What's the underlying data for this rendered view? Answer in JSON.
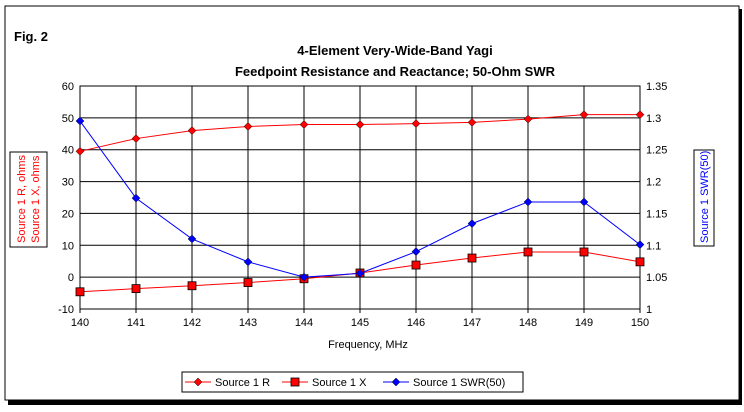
{
  "chart_data": {
    "type": "line",
    "figure_label": "Fig. 2",
    "title": [
      "4-Element Very-Wide-Band Yagi",
      "Feedpoint Resistance and Reactance; 50-Ohm SWR"
    ],
    "xlabel": "Frequency, MHz",
    "ylabel_left": [
      "Source 1 R,  ohms",
      "Source 1 X,  ohms"
    ],
    "ylabel_right": "Source 1 SWR(50)",
    "x": [
      140,
      141,
      142,
      143,
      144,
      145,
      146,
      147,
      148,
      149,
      150
    ],
    "xlim": [
      140,
      150
    ],
    "ylim_left": [
      -10,
      60
    ],
    "ylim_right": [
      1,
      1.35
    ],
    "yticks_left": [
      "-10",
      "0",
      "10",
      "20",
      "30",
      "40",
      "50",
      "60"
    ],
    "yticks_right": [
      "1",
      "1.05",
      "1.1",
      "1.15",
      "1.2",
      "1.25",
      "1.3",
      "1.35"
    ],
    "grid": true,
    "legend_position": "bottom",
    "series": [
      {
        "name": "Source 1 R",
        "axis": "left",
        "marker": "diamond",
        "color": "#ff0000",
        "values": [
          39.5,
          43.5,
          46,
          47.3,
          47.9,
          47.9,
          48.2,
          48.6,
          49.6,
          51,
          51
        ]
      },
      {
        "name": "Source 1 X",
        "axis": "left",
        "marker": "square",
        "color": "#ff0000",
        "values": [
          -4.6,
          -3.6,
          -2.7,
          -1.7,
          -0.5,
          1.3,
          3.8,
          6,
          7.9,
          7.9,
          4.8
        ]
      },
      {
        "name": "Source 1 SWR(50)",
        "axis": "right",
        "marker": "diamond",
        "color": "#0000ff",
        "values": [
          1.295,
          1.174,
          1.11,
          1.074,
          1.05,
          1.056,
          1.09,
          1.134,
          1.168,
          1.168,
          1.101
        ]
      }
    ]
  }
}
